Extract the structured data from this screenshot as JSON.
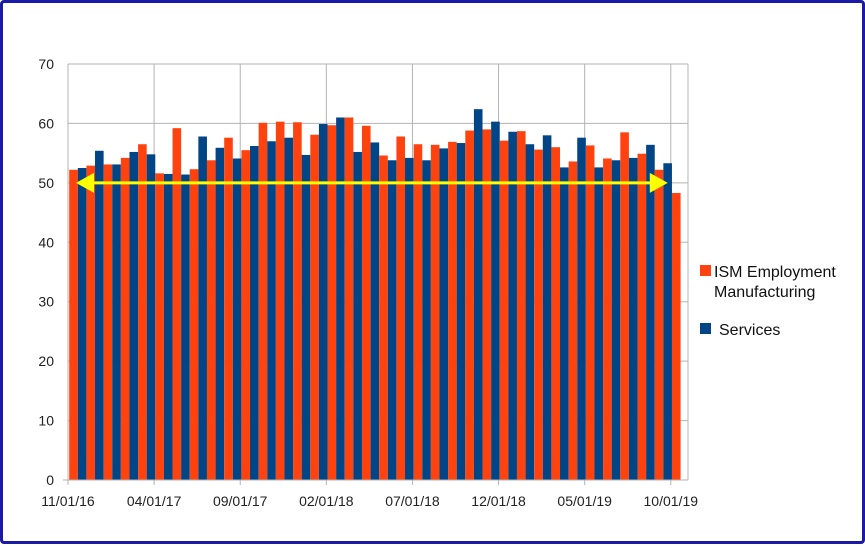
{
  "chart_data": {
    "type": "bar",
    "title": "",
    "xlabel": "",
    "ylabel": "",
    "ylim": [
      0,
      70
    ],
    "yticks": [
      0,
      10,
      20,
      30,
      40,
      50,
      60,
      70
    ],
    "grid": "horizontal",
    "legend_position": "right",
    "categories": [
      "11/01/16",
      "12/01/16",
      "01/01/17",
      "02/01/17",
      "03/01/17",
      "04/01/17",
      "05/01/17",
      "06/01/17",
      "07/01/17",
      "08/01/17",
      "09/01/17",
      "10/01/17",
      "11/01/17",
      "12/01/17",
      "01/01/18",
      "02/01/18",
      "03/01/18",
      "04/01/18",
      "05/01/18",
      "06/01/18",
      "07/01/18",
      "08/01/18",
      "09/01/18",
      "10/01/18",
      "11/01/18",
      "12/01/18",
      "01/01/19",
      "02/01/19",
      "03/01/19",
      "04/01/19",
      "05/01/19",
      "06/01/19",
      "07/01/19",
      "08/01/19",
      "09/01/19",
      "10/01/19"
    ],
    "xtick_labels": [
      "11/01/16",
      "04/01/17",
      "09/01/17",
      "02/01/18",
      "07/01/18",
      "12/01/18",
      "05/01/19",
      "10/01/19"
    ],
    "series": [
      {
        "name": "ISM Employment Manufacturing",
        "color": "#ff420e",
        "values": [
          52.2,
          52.9,
          53.1,
          54.2,
          56.5,
          51.6,
          59.2,
          52.3,
          53.8,
          57.6,
          55.5,
          60.1,
          60.3,
          60.2,
          58.1,
          59.7,
          61.0,
          59.6,
          54.6,
          57.8,
          56.5,
          56.4,
          56.9,
          58.8,
          59.0,
          57.1,
          58.7,
          55.6,
          56.0,
          53.6,
          56.3,
          54.1,
          58.5,
          54.9,
          52.2,
          48.3
        ]
      },
      {
        "name": "Services",
        "color": "#004586",
        "values": [
          52.5,
          55.4,
          53.1,
          55.2,
          54.8,
          51.5,
          51.4,
          57.8,
          55.9,
          54.1,
          56.2,
          57.0,
          57.6,
          54.7,
          59.9,
          61.0,
          55.2,
          56.8,
          53.8,
          54.2,
          53.8,
          55.8,
          56.7,
          62.4,
          60.3,
          58.6,
          56.5,
          58.0,
          52.6,
          57.6,
          52.6,
          53.8,
          54.2,
          56.4,
          53.3,
          0
        ]
      }
    ],
    "annotations": [
      {
        "type": "double-arrow",
        "y": 50,
        "x_start": "11/01/16",
        "x_end": "10/01/19",
        "color": "#ffff00"
      }
    ]
  }
}
